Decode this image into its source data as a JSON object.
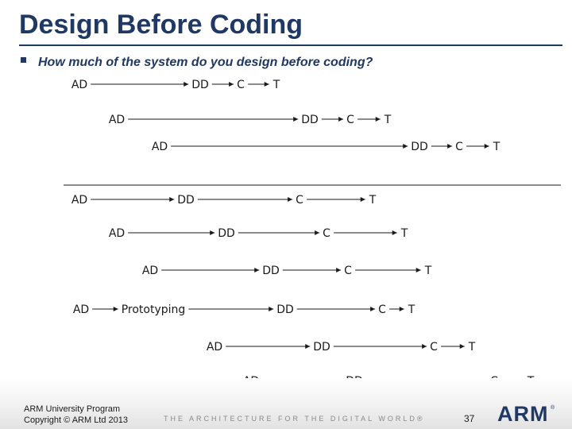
{
  "slide": {
    "title": "Design Before Coding",
    "subtitle": "How much of the system do you design before coding?"
  },
  "diagram": {
    "rows": [
      {
        "items": [
          "AD",
          "DD",
          "C",
          "T"
        ]
      },
      {
        "items": [
          "AD",
          "DD",
          "C",
          "T"
        ]
      },
      {
        "items": [
          "AD",
          "DD",
          "C",
          "T"
        ]
      },
      {
        "items": [
          "AD",
          "DD",
          "C",
          "T"
        ]
      },
      {
        "items": [
          "AD",
          "DD",
          "C",
          "T"
        ]
      },
      {
        "items": [
          "AD",
          "DD",
          "C",
          "T"
        ]
      },
      {
        "items": [
          "AD",
          "Prototyping",
          "DD",
          "C",
          "T"
        ]
      },
      {
        "items": [
          "AD",
          "DD",
          "C",
          "T"
        ]
      },
      {
        "items": [
          "AD",
          "DD",
          "C",
          "T"
        ]
      }
    ]
  },
  "footer": {
    "org_line1": "ARM University Program",
    "org_line2": "Copyright © ARM Ltd 2013",
    "tagline": "THE ARCHITECTURE FOR THE DIGITAL WORLD®",
    "page_number": "37",
    "logo_text": "ARM",
    "logo_mark": "®"
  }
}
